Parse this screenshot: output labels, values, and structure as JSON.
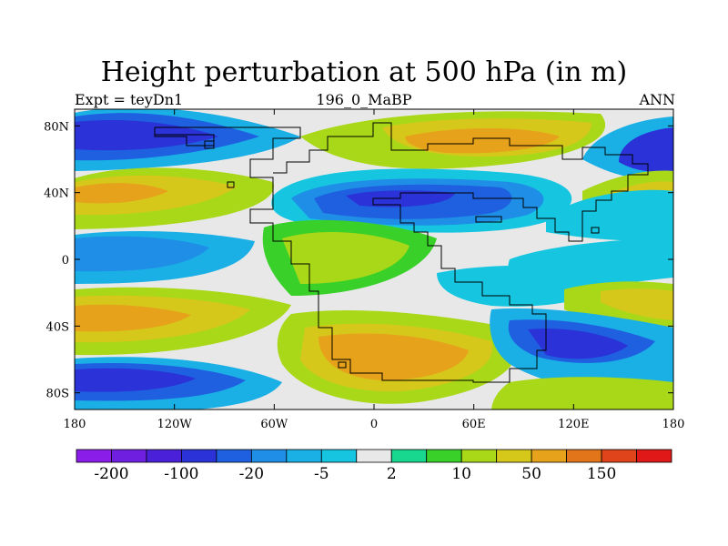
{
  "title": "Height perturbation at 500 hPa (in m)",
  "subtitle_left": "Expt = teyDn1",
  "subtitle_center": "196_0_MaBP",
  "subtitle_right": "ANN",
  "map": {
    "lon_range": [
      -180,
      180
    ],
    "lat_range": [
      -90,
      90
    ],
    "x_ticks": [
      {
        "value": -180,
        "label": "180"
      },
      {
        "value": -120,
        "label": "120W"
      },
      {
        "value": -60,
        "label": "60W"
      },
      {
        "value": 0,
        "label": "0"
      },
      {
        "value": 60,
        "label": "60E"
      },
      {
        "value": 120,
        "label": "120E"
      },
      {
        "value": 180,
        "label": "180"
      }
    ],
    "y_ticks": [
      {
        "value": 80,
        "label": "80N"
      },
      {
        "value": 40,
        "label": "40N"
      },
      {
        "value": 0,
        "label": "0"
      },
      {
        "value": -40,
        "label": "40S"
      },
      {
        "value": -80,
        "label": "80S"
      }
    ]
  },
  "colorbar": {
    "colors": [
      "#8a1ee8",
      "#6e1fe0",
      "#4a20d8",
      "#2a32d8",
      "#1f60e0",
      "#1f8ee6",
      "#1ab0e6",
      "#16c6e0",
      "#e8e8e8",
      "#18d890",
      "#3ad02a",
      "#a8d818",
      "#d6c81a",
      "#e6a21a",
      "#e2741a",
      "#e0441a",
      "#e01818"
    ],
    "labels": [
      {
        "after_bin": 1,
        "text": "-200"
      },
      {
        "after_bin": 3,
        "text": "-100"
      },
      {
        "after_bin": 5,
        "text": "-20"
      },
      {
        "after_bin": 7,
        "text": "-5"
      },
      {
        "after_bin": 9,
        "text": "2"
      },
      {
        "after_bin": 11,
        "text": "10"
      },
      {
        "after_bin": 13,
        "text": "50"
      },
      {
        "after_bin": 15,
        "text": "150"
      }
    ]
  }
}
